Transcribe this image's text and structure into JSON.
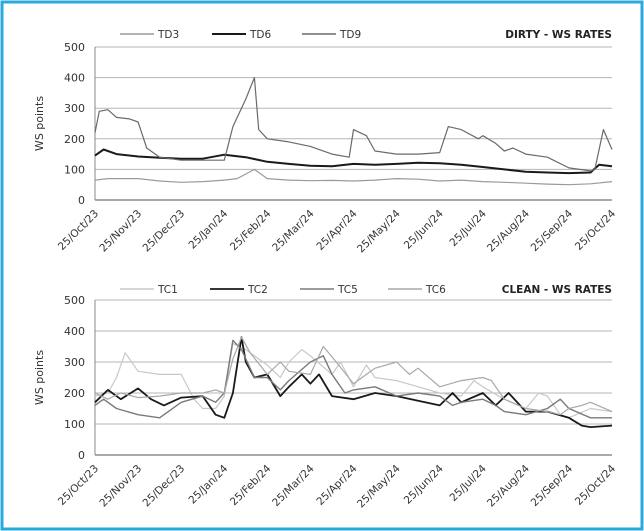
{
  "style": {
    "border_color": "#29a9e0",
    "grid_color": "#b5b5b5"
  },
  "chart_data": [
    {
      "type": "line",
      "title": "DIRTY - WS RATES",
      "xlabel": "",
      "ylabel": "WS points",
      "ylim": [
        0,
        500
      ],
      "yticks": [
        0,
        100,
        200,
        300,
        400,
        500
      ],
      "ytick_labels": [
        "0",
        "100",
        "200",
        "300",
        "400",
        "500"
      ],
      "xtick_labels": [
        "25/Oct/23",
        "25/Nov/23",
        "25/Dec/23",
        "25/Jan/24",
        "25/Feb/24",
        "25/Mar/24",
        "25/Apr/24",
        "25/May/24",
        "25/Jun/24",
        "25/Jul/24",
        "25/Aug/24",
        "25/Sep/24",
        "25/Oct/24"
      ],
      "grid": true,
      "legend_position": "top-left",
      "series": [
        {
          "name": "TD3",
          "color": "#9a9a9a",
          "width": 1.2,
          "x": [
            0,
            0.3,
            1,
            1.5,
            2,
            2.5,
            3,
            3.3,
            3.7,
            4,
            4.5,
            5,
            5.5,
            6,
            6.5,
            7,
            7.5,
            8,
            8.5,
            9,
            9.5,
            10,
            10.5,
            11,
            11.5,
            12
          ],
          "values": [
            65,
            70,
            70,
            62,
            58,
            60,
            65,
            70,
            100,
            70,
            65,
            63,
            64,
            62,
            65,
            70,
            68,
            62,
            65,
            60,
            58,
            55,
            52,
            50,
            53,
            60
          ]
        },
        {
          "name": "TD6",
          "color": "#1a1a1a",
          "width": 2.0,
          "x": [
            0,
            0.2,
            0.5,
            1,
            1.5,
            2,
            2.5,
            3,
            3.5,
            4,
            4.5,
            5,
            5.5,
            6,
            6.5,
            7,
            7.5,
            8,
            8.5,
            9,
            9.5,
            10,
            10.5,
            11,
            11.5,
            11.7,
            12
          ],
          "values": [
            145,
            165,
            150,
            142,
            138,
            135,
            135,
            148,
            140,
            125,
            118,
            112,
            110,
            118,
            115,
            118,
            122,
            120,
            115,
            108,
            100,
            92,
            90,
            88,
            90,
            115,
            110
          ]
        },
        {
          "name": "TD9",
          "color": "#6a6a6a",
          "width": 1.2,
          "x": [
            0,
            0.1,
            0.3,
            0.5,
            0.8,
            1,
            1.2,
            1.5,
            2,
            2.5,
            3,
            3.2,
            3.5,
            3.7,
            3.8,
            4,
            4.5,
            5,
            5.5,
            5.9,
            6,
            6.3,
            6.5,
            7,
            7.5,
            8,
            8.2,
            8.5,
            8.9,
            9,
            9.3,
            9.5,
            9.7,
            10,
            10.5,
            11,
            11.5,
            11.6,
            11.8,
            12
          ],
          "values": [
            220,
            290,
            295,
            270,
            265,
            255,
            170,
            140,
            130,
            130,
            130,
            240,
            330,
            400,
            230,
            200,
            190,
            175,
            150,
            140,
            230,
            210,
            160,
            150,
            150,
            155,
            240,
            230,
            200,
            210,
            185,
            160,
            170,
            150,
            140,
            105,
            95,
            100,
            230,
            165
          ]
        }
      ]
    },
    {
      "type": "line",
      "title": "CLEAN - WS RATES",
      "xlabel": "",
      "ylabel": "WS points",
      "ylim": [
        0,
        500
      ],
      "yticks": [
        0,
        100,
        200,
        300,
        400,
        500
      ],
      "ytick_labels": [
        "0",
        "100",
        "200",
        "300",
        "400",
        "500"
      ],
      "xtick_labels": [
        "25/Oct/23",
        "25/Nov/23",
        "25/Dec/23",
        "25/Jan/24",
        "25/Feb/24",
        "25/Mar/24",
        "25/Apr/24",
        "25/May/24",
        "25/Jun/24",
        "25/Jul/24",
        "25/Aug/24",
        "25/Sep/24",
        "25/Oct/24"
      ],
      "grid": true,
      "legend_position": "top-left",
      "series": [
        {
          "name": "TC1",
          "color": "#c8c8c8",
          "width": 1.2,
          "x": [
            0,
            0.3,
            0.5,
            0.7,
            1,
            1.5,
            2,
            2.3,
            2.5,
            2.8,
            3,
            3.2,
            3.5,
            4,
            4.3,
            4.5,
            4.8,
            5,
            5.5,
            5.7,
            6,
            6.3,
            6.5,
            7,
            7.5,
            8,
            8.5,
            8.8,
            9,
            9.5,
            10,
            10.3,
            10.5,
            10.8,
            11,
            11.5,
            12
          ],
          "values": [
            190,
            200,
            250,
            330,
            270,
            260,
            260,
            180,
            150,
            150,
            190,
            360,
            340,
            290,
            250,
            300,
            340,
            320,
            260,
            300,
            220,
            290,
            250,
            240,
            220,
            200,
            190,
            240,
            220,
            180,
            150,
            200,
            190,
            130,
            120,
            150,
            140
          ]
        },
        {
          "name": "TC2",
          "color": "#1a1a1a",
          "width": 1.8,
          "x": [
            0,
            0.3,
            0.6,
            1,
            1.3,
            1.6,
            2,
            2.5,
            2.8,
            3,
            3.2,
            3.4,
            3.5,
            3.7,
            4,
            4.3,
            4.5,
            4.8,
            5,
            5.2,
            5.5,
            6,
            6.5,
            7,
            7.5,
            8,
            8.3,
            8.5,
            9,
            9.3,
            9.6,
            10,
            10.5,
            11,
            11.3,
            11.5,
            12
          ],
          "values": [
            170,
            210,
            180,
            215,
            180,
            160,
            185,
            190,
            130,
            120,
            200,
            380,
            300,
            250,
            260,
            190,
            220,
            260,
            230,
            260,
            190,
            180,
            200,
            190,
            175,
            160,
            200,
            170,
            200,
            160,
            200,
            140,
            140,
            120,
            95,
            90,
            95
          ]
        },
        {
          "name": "TC5",
          "color": "#7a7a7a",
          "width": 1.4,
          "x": [
            0,
            0.2,
            0.5,
            1,
            1.5,
            2,
            2.5,
            2.8,
            3,
            3.2,
            3.4,
            3.7,
            4,
            4.3,
            4.5,
            5,
            5.3,
            5.5,
            5.8,
            6,
            6.5,
            7,
            7.5,
            8,
            8.3,
            8.5,
            9,
            9.3,
            9.5,
            10,
            10.5,
            10.8,
            11,
            11.5,
            12
          ],
          "values": [
            160,
            180,
            150,
            130,
            120,
            170,
            190,
            170,
            200,
            370,
            340,
            250,
            250,
            210,
            240,
            300,
            320,
            260,
            200,
            210,
            220,
            190,
            200,
            190,
            160,
            170,
            180,
            160,
            140,
            130,
            150,
            180,
            150,
            120,
            120
          ]
        },
        {
          "name": "TC6",
          "color": "#a8a8a8",
          "width": 1.2,
          "x": [
            0,
            0.3,
            0.6,
            1,
            1.5,
            2,
            2.5,
            2.8,
            3,
            3.2,
            3.4,
            3.6,
            4,
            4.3,
            4.5,
            5,
            5.3,
            5.6,
            6,
            6.3,
            6.5,
            7,
            7.3,
            7.5,
            8,
            8.5,
            9,
            9.2,
            9.5,
            10,
            10.5,
            10.8,
            11,
            11.3,
            11.5,
            12
          ],
          "values": [
            200,
            180,
            200,
            185,
            190,
            200,
            200,
            210,
            200,
            310,
            380,
            330,
            260,
            300,
            270,
            260,
            350,
            300,
            230,
            260,
            280,
            300,
            260,
            280,
            220,
            240,
            250,
            240,
            180,
            150,
            140,
            130,
            150,
            160,
            170,
            140
          ]
        }
      ]
    }
  ]
}
